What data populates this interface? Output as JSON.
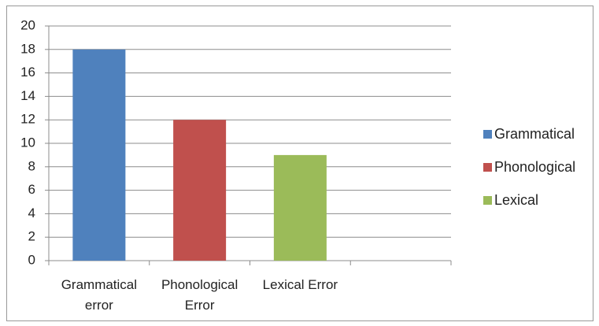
{
  "chart_data": {
    "type": "bar",
    "categories": [
      "Grammatical error",
      "Phonological Error",
      "Lexical Error",
      null
    ],
    "series": [
      {
        "name": "Grammatical",
        "color": "#4f81bd",
        "values": [
          18,
          null,
          null,
          null
        ]
      },
      {
        "name": "Phonological",
        "color": "#c0504d",
        "values": [
          null,
          12,
          null,
          null
        ]
      },
      {
        "name": "Lexical",
        "color": "#9bbb59",
        "values": [
          null,
          null,
          9,
          null
        ]
      }
    ],
    "ylim": [
      0,
      20
    ],
    "yticks": [
      0,
      2,
      4,
      6,
      8,
      10,
      12,
      14,
      16,
      18,
      20
    ],
    "grid": true,
    "legend": "right"
  }
}
